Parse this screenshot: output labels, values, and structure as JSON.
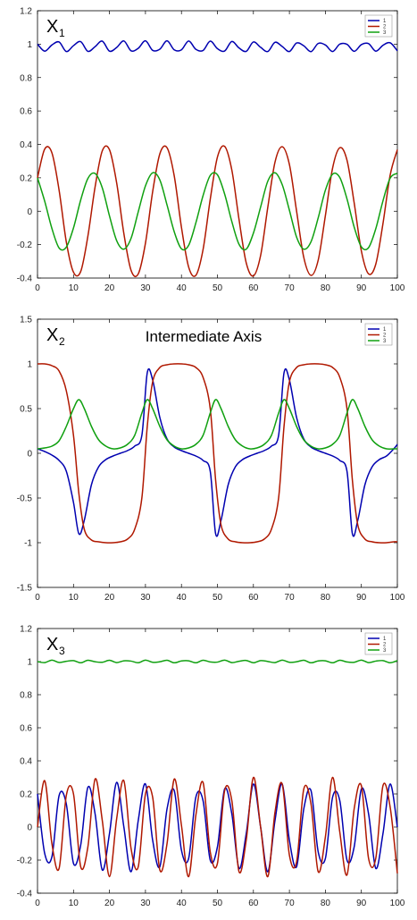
{
  "chart_data": [
    {
      "type": "line",
      "panel_label": "X",
      "panel_subscript": "1",
      "title": "",
      "xlabel": "",
      "ylabel": "",
      "xlim": [
        0,
        100
      ],
      "ylim": [
        -0.4,
        1.2
      ],
      "xticks": [
        0,
        10,
        20,
        30,
        40,
        50,
        60,
        70,
        80,
        90,
        100
      ],
      "yticks": [
        -0.4,
        -0.2,
        0,
        0.2,
        0.4,
        0.6,
        0.8,
        1,
        1.2
      ],
      "ytick_labels": [
        "-0.4",
        "-0.2",
        "0",
        "0.2",
        "0.4",
        "0.6",
        "0.8",
        "1",
        "1.2"
      ],
      "grid": false,
      "legend_position": "top-right",
      "x": [
        0,
        2,
        4,
        6,
        8,
        10,
        12,
        14,
        16,
        18,
        20,
        22,
        24,
        26,
        28,
        30,
        32,
        34,
        36,
        38,
        40,
        42,
        44,
        46,
        48,
        50,
        52,
        54,
        56,
        58,
        60,
        62,
        64,
        66,
        68,
        70,
        72,
        74,
        76,
        78,
        80,
        82,
        84,
        86,
        88,
        90,
        92,
        94,
        96,
        98,
        100
      ],
      "series": [
        {
          "name": "1",
          "color": "#0000b0",
          "values": [
            1.0,
            0.958,
            0.995,
            1.013,
            0.956,
            0.991,
            1.015,
            0.957,
            0.985,
            1.018,
            0.958,
            0.98,
            1.019,
            0.96,
            0.975,
            1.02,
            0.963,
            0.97,
            1.02,
            0.966,
            0.966,
            1.019,
            0.969,
            0.962,
            1.018,
            0.973,
            0.959,
            1.016,
            0.977,
            0.957,
            1.013,
            0.981,
            0.956,
            1.011,
            0.986,
            0.956,
            1.007,
            0.99,
            0.955,
            1.004,
            0.995,
            0.956,
            1.0,
            0.999,
            0.957,
            0.997,
            1.003,
            0.958,
            0.993,
            1.008,
            0.96
          ]
        },
        {
          "name": "2",
          "color": "#b01800",
          "values": [
            0.2,
            0.372,
            0.35,
            0.126,
            -0.183,
            -0.365,
            -0.361,
            -0.149,
            0.145,
            0.361,
            0.368,
            0.169,
            -0.134,
            -0.354,
            -0.375,
            -0.191,
            0.117,
            0.344,
            0.38,
            0.211,
            -0.096,
            -0.334,
            -0.384,
            -0.23,
            0.071,
            0.324,
            0.388,
            0.247,
            -0.049,
            -0.309,
            -0.387,
            -0.265,
            0.024,
            0.294,
            0.386,
            0.28,
            0.0,
            -0.277,
            -0.384,
            -0.293,
            -0.026,
            0.258,
            0.38,
            0.306,
            0.05,
            -0.238,
            -0.375,
            -0.317,
            -0.074,
            0.216,
            0.368
          ]
        },
        {
          "name": "3",
          "color": "#10a010",
          "values": [
            0.2,
            0.06,
            -0.103,
            -0.22,
            -0.215,
            -0.1,
            0.067,
            0.196,
            0.226,
            0.14,
            -0.028,
            -0.176,
            -0.227,
            -0.162,
            -0.003,
            0.152,
            0.23,
            0.187,
            0.037,
            -0.123,
            -0.225,
            -0.204,
            -0.07,
            0.093,
            0.214,
            0.218,
            0.103,
            -0.062,
            -0.198,
            -0.227,
            -0.131,
            0.025,
            0.18,
            0.23,
            0.159,
            0.006,
            -0.155,
            -0.227,
            -0.183,
            -0.04,
            0.126,
            0.222,
            0.202,
            0.074,
            -0.095,
            -0.213,
            -0.218,
            -0.105,
            0.062,
            0.198,
            0.227
          ]
        }
      ]
    },
    {
      "type": "line",
      "panel_label": "X",
      "panel_subscript": "2",
      "title": "Intermediate Axis",
      "xlabel": "",
      "ylabel": "",
      "xlim": [
        0,
        100
      ],
      "ylim": [
        -1.5,
        1.5
      ],
      "xticks": [
        0,
        10,
        20,
        30,
        40,
        50,
        60,
        70,
        80,
        90,
        100
      ],
      "yticks": [
        -1.5,
        -1,
        -0.5,
        0,
        0.5,
        1,
        1.5
      ],
      "ytick_labels": [
        "-1.5",
        "-1",
        "-0.5",
        "0",
        "0.5",
        "1",
        "1.5"
      ],
      "grid": false,
      "legend_position": "top-right",
      "x": [
        0,
        2,
        4,
        6,
        8,
        10,
        11.5,
        13,
        15,
        17,
        19,
        21,
        23,
        25,
        27,
        29,
        30.5,
        32,
        34,
        36,
        38,
        40,
        42,
        44,
        46,
        48,
        49.5,
        51,
        53,
        55,
        57,
        59,
        61,
        63,
        65,
        67,
        68.5,
        70,
        72,
        74,
        76,
        78,
        80,
        82,
        84,
        86,
        87.5,
        89,
        91,
        93,
        95,
        97,
        99,
        100
      ],
      "series": [
        {
          "name": "1",
          "color": "#0000b0",
          "values": [
            0.05,
            0.02,
            -0.02,
            -0.08,
            -0.2,
            -0.55,
            -0.9,
            -0.75,
            -0.35,
            -0.15,
            -0.07,
            -0.03,
            0.0,
            0.03,
            0.08,
            0.2,
            0.9,
            0.82,
            0.4,
            0.16,
            0.07,
            0.03,
            0.0,
            -0.03,
            -0.08,
            -0.2,
            -0.9,
            -0.75,
            -0.35,
            -0.15,
            -0.07,
            -0.03,
            0.0,
            0.03,
            0.08,
            0.2,
            0.9,
            0.82,
            0.4,
            0.16,
            0.07,
            0.03,
            0.0,
            -0.03,
            -0.08,
            -0.2,
            -0.9,
            -0.75,
            -0.35,
            -0.15,
            -0.07,
            -0.03,
            0.05,
            0.1
          ]
        },
        {
          "name": "2",
          "color": "#b01800",
          "values": [
            1.0,
            1.0,
            0.98,
            0.92,
            0.7,
            0.2,
            -0.45,
            -0.85,
            -0.97,
            -0.99,
            -1.0,
            -1.0,
            -0.99,
            -0.96,
            -0.85,
            -0.5,
            0.3,
            0.8,
            0.96,
            0.99,
            1.0,
            1.0,
            0.99,
            0.96,
            0.85,
            0.5,
            -0.3,
            -0.8,
            -0.96,
            -0.99,
            -1.0,
            -1.0,
            -0.99,
            -0.96,
            -0.85,
            -0.5,
            0.3,
            0.8,
            0.96,
            0.99,
            1.0,
            1.0,
            0.99,
            0.96,
            0.85,
            0.5,
            -0.3,
            -0.8,
            -0.96,
            -0.99,
            -1.0,
            -1.0,
            -0.99,
            -0.99
          ]
        },
        {
          "name": "3",
          "color": "#10a010",
          "values": [
            0.05,
            0.06,
            0.08,
            0.14,
            0.3,
            0.5,
            0.6,
            0.5,
            0.3,
            0.15,
            0.08,
            0.05,
            0.06,
            0.1,
            0.2,
            0.45,
            0.6,
            0.5,
            0.3,
            0.15,
            0.08,
            0.05,
            0.06,
            0.1,
            0.2,
            0.45,
            0.6,
            0.5,
            0.3,
            0.15,
            0.08,
            0.05,
            0.06,
            0.1,
            0.2,
            0.45,
            0.6,
            0.5,
            0.3,
            0.15,
            0.08,
            0.05,
            0.06,
            0.1,
            0.2,
            0.45,
            0.6,
            0.5,
            0.3,
            0.15,
            0.08,
            0.05,
            0.05,
            0.05
          ]
        }
      ]
    },
    {
      "type": "line",
      "panel_label": "X",
      "panel_subscript": "3",
      "title": "",
      "xlabel": "",
      "ylabel": "",
      "xlim": [
        0,
        100
      ],
      "ylim": [
        -0.4,
        1.2
      ],
      "xticks": [
        0,
        10,
        20,
        30,
        40,
        50,
        60,
        70,
        80,
        90,
        100
      ],
      "yticks": [
        -0.4,
        -0.2,
        0,
        0.2,
        0.4,
        0.6,
        0.8,
        1,
        1.2
      ],
      "ytick_labels": [
        "-0.4",
        "-0.2",
        "0",
        "0.2",
        "0.4",
        "0.6",
        "0.8",
        "1",
        "1.2"
      ],
      "grid": false,
      "legend_position": "top-right",
      "x": [
        0,
        2,
        4,
        6,
        8,
        10,
        12,
        14,
        16,
        18,
        20,
        22,
        24,
        26,
        28,
        30,
        32,
        34,
        36,
        38,
        40,
        42,
        44,
        46,
        48,
        50,
        52,
        54,
        56,
        58,
        60,
        62,
        64,
        66,
        68,
        70,
        72,
        74,
        76,
        78,
        80,
        82,
        84,
        86,
        88,
        90,
        92,
        94,
        96,
        98,
        100
      ],
      "series": [
        {
          "name": "1",
          "color": "#0000b0",
          "values": [
            0.2,
            -0.16,
            -0.18,
            0.19,
            0.14,
            -0.22,
            -0.11,
            0.24,
            0.08,
            -0.26,
            -0.04,
            0.27,
            0.0,
            -0.27,
            0.04,
            0.26,
            -0.08,
            -0.24,
            0.11,
            0.22,
            -0.14,
            -0.19,
            0.18,
            0.16,
            -0.2,
            -0.12,
            0.23,
            0.08,
            -0.25,
            -0.04,
            0.26,
            0.0,
            -0.27,
            0.04,
            0.26,
            -0.08,
            -0.24,
            0.11,
            0.22,
            -0.15,
            -0.19,
            0.18,
            0.16,
            -0.2,
            -0.12,
            0.23,
            0.08,
            -0.25,
            -0.04,
            0.26,
            0.0
          ]
        },
        {
          "name": "2",
          "color": "#b01800",
          "values": [
            0.0,
            0.28,
            -0.1,
            -0.25,
            0.19,
            0.2,
            -0.24,
            -0.12,
            0.29,
            0.04,
            -0.3,
            0.05,
            0.28,
            -0.13,
            -0.24,
            0.2,
            0.18,
            -0.26,
            -0.1,
            0.29,
            0.01,
            -0.3,
            0.07,
            0.27,
            -0.15,
            -0.22,
            0.22,
            0.16,
            -0.27,
            -0.08,
            0.3,
            0.0,
            -0.3,
            0.09,
            0.26,
            -0.17,
            -0.21,
            0.23,
            0.14,
            -0.27,
            -0.06,
            0.3,
            -0.03,
            -0.29,
            0.11,
            0.25,
            -0.19,
            -0.19,
            0.25,
            0.12,
            -0.28
          ]
        },
        {
          "name": "3",
          "color": "#10a010",
          "values": [
            1.0,
            0.994,
            1.009,
            0.995,
            1.002,
            1.006,
            0.993,
            1.008,
            0.999,
            0.996,
            1.008,
            0.994,
            1.005,
            1.003,
            0.993,
            1.009,
            0.996,
            0.999,
            1.008,
            0.993,
            1.004,
            1.005,
            0.993,
            1.008,
            0.998,
            0.997,
            1.009,
            0.994,
            1.002,
            1.007,
            0.993,
            1.006,
            1.001,
            0.994,
            1.009,
            0.996,
            0.999,
            1.008,
            0.993,
            1.004,
            1.005,
            0.993,
            1.008,
            0.998,
            0.996,
            1.009,
            0.994,
            1.003,
            1.006,
            0.993,
            1.006
          ]
        }
      ]
    }
  ]
}
